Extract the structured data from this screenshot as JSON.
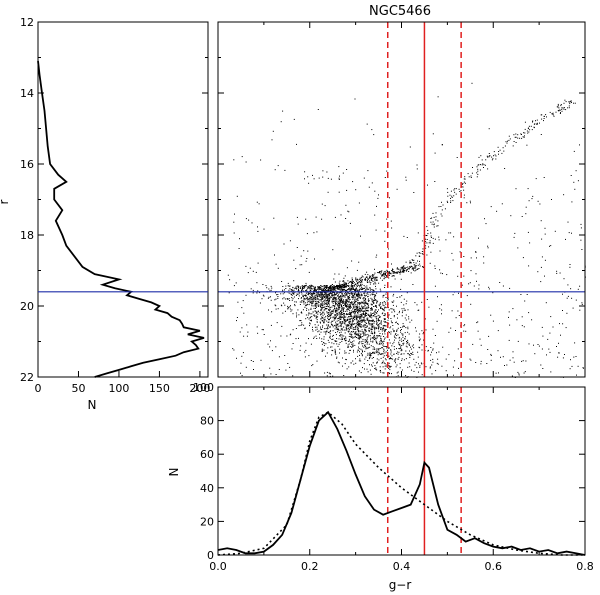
{
  "chart_data": [
    {
      "panel": "luminance-function",
      "type": "line",
      "title": "",
      "xlabel": "N",
      "ylabel": "r",
      "xlim": [
        0,
        210
      ],
      "ylim": [
        22,
        12
      ],
      "x_ticks": [
        0,
        50,
        100,
        150,
        200
      ],
      "y_ticks": [
        12,
        14,
        16,
        18,
        20,
        22
      ],
      "series": [
        {
          "r": [
            13.1,
            13.5,
            14.0,
            14.5,
            15.0,
            15.5,
            16.0,
            16.3,
            16.5,
            16.7,
            17.0,
            17.3,
            17.6,
            18.0,
            18.3,
            18.6,
            18.9,
            19.1,
            19.25,
            19.4,
            19.5,
            19.6,
            19.7,
            19.8,
            19.9,
            20.0,
            20.1,
            20.2,
            20.3,
            20.4,
            20.5,
            20.6,
            20.7,
            20.8,
            20.9,
            21.0,
            21.1,
            21.2,
            21.3,
            21.4,
            21.5,
            21.6,
            21.7,
            21.8,
            21.9,
            22.0
          ],
          "N": [
            0,
            2,
            5,
            8,
            10,
            12,
            15,
            25,
            35,
            20,
            20,
            30,
            22,
            30,
            35,
            45,
            55,
            70,
            100,
            80,
            95,
            115,
            110,
            125,
            140,
            150,
            145,
            160,
            165,
            175,
            178,
            180,
            200,
            185,
            205,
            190,
            195,
            198,
            180,
            170,
            150,
            130,
            115,
            100,
            85,
            70
          ]
        }
      ],
      "hline_r": 19.6
    },
    {
      "panel": "color-magnitude-diagram",
      "type": "scatter",
      "title": "NGC5466",
      "xlabel": "",
      "ylabel": "",
      "xlim": [
        0.0,
        0.8
      ],
      "ylim": [
        22,
        12
      ],
      "hline_r": 19.6,
      "vline_solid": 0.45,
      "vlines_dashed": [
        0.37,
        0.53
      ],
      "sequence_points_gr_r": [
        [
          0.22,
          19.6
        ],
        [
          0.28,
          19.35
        ],
        [
          0.35,
          19.1
        ],
        [
          0.42,
          18.85
        ],
        [
          0.45,
          18.3
        ],
        [
          0.47,
          17.6
        ],
        [
          0.5,
          17.0
        ],
        [
          0.55,
          16.3
        ],
        [
          0.6,
          15.7
        ],
        [
          0.66,
          15.1
        ],
        [
          0.72,
          14.6
        ],
        [
          0.78,
          14.2
        ]
      ]
    },
    {
      "panel": "color-distribution",
      "type": "line",
      "title": "",
      "xlabel": "g−r",
      "ylabel": "N",
      "xlim": [
        0.0,
        0.8
      ],
      "ylim": [
        0,
        100
      ],
      "x_ticks": [
        0.0,
        0.2,
        0.4,
        0.6,
        0.8
      ],
      "y_ticks": [
        0,
        20,
        40,
        60,
        80,
        100
      ],
      "vline_solid": 0.45,
      "vlines_dashed": [
        0.37,
        0.53
      ],
      "series": [
        {
          "style": "solid",
          "x": [
            0.0,
            0.02,
            0.04,
            0.06,
            0.08,
            0.1,
            0.12,
            0.14,
            0.16,
            0.18,
            0.2,
            0.22,
            0.24,
            0.26,
            0.28,
            0.3,
            0.32,
            0.34,
            0.36,
            0.38,
            0.4,
            0.42,
            0.44,
            0.45,
            0.46,
            0.48,
            0.5,
            0.52,
            0.54,
            0.56,
            0.58,
            0.6,
            0.62,
            0.64,
            0.66,
            0.68,
            0.7,
            0.72,
            0.74,
            0.76,
            0.78,
            0.8
          ],
          "y": [
            3,
            4,
            3,
            1,
            1,
            2,
            6,
            12,
            25,
            45,
            65,
            80,
            85,
            75,
            62,
            48,
            35,
            27,
            24,
            26,
            28,
            30,
            42,
            55,
            52,
            30,
            15,
            12,
            8,
            10,
            7,
            5,
            4,
            5,
            3,
            4,
            2,
            3,
            1,
            2,
            1,
            0
          ]
        },
        {
          "style": "dotted",
          "x": [
            0.0,
            0.05,
            0.1,
            0.15,
            0.18,
            0.2,
            0.22,
            0.24,
            0.27,
            0.3,
            0.35,
            0.4,
            0.45,
            0.5,
            0.55,
            0.6,
            0.65,
            0.7,
            0.75,
            0.8
          ],
          "y": [
            0,
            1,
            4,
            18,
            45,
            68,
            82,
            85,
            78,
            66,
            52,
            40,
            30,
            20,
            12,
            6,
            3,
            1,
            0,
            0
          ]
        }
      ]
    }
  ]
}
